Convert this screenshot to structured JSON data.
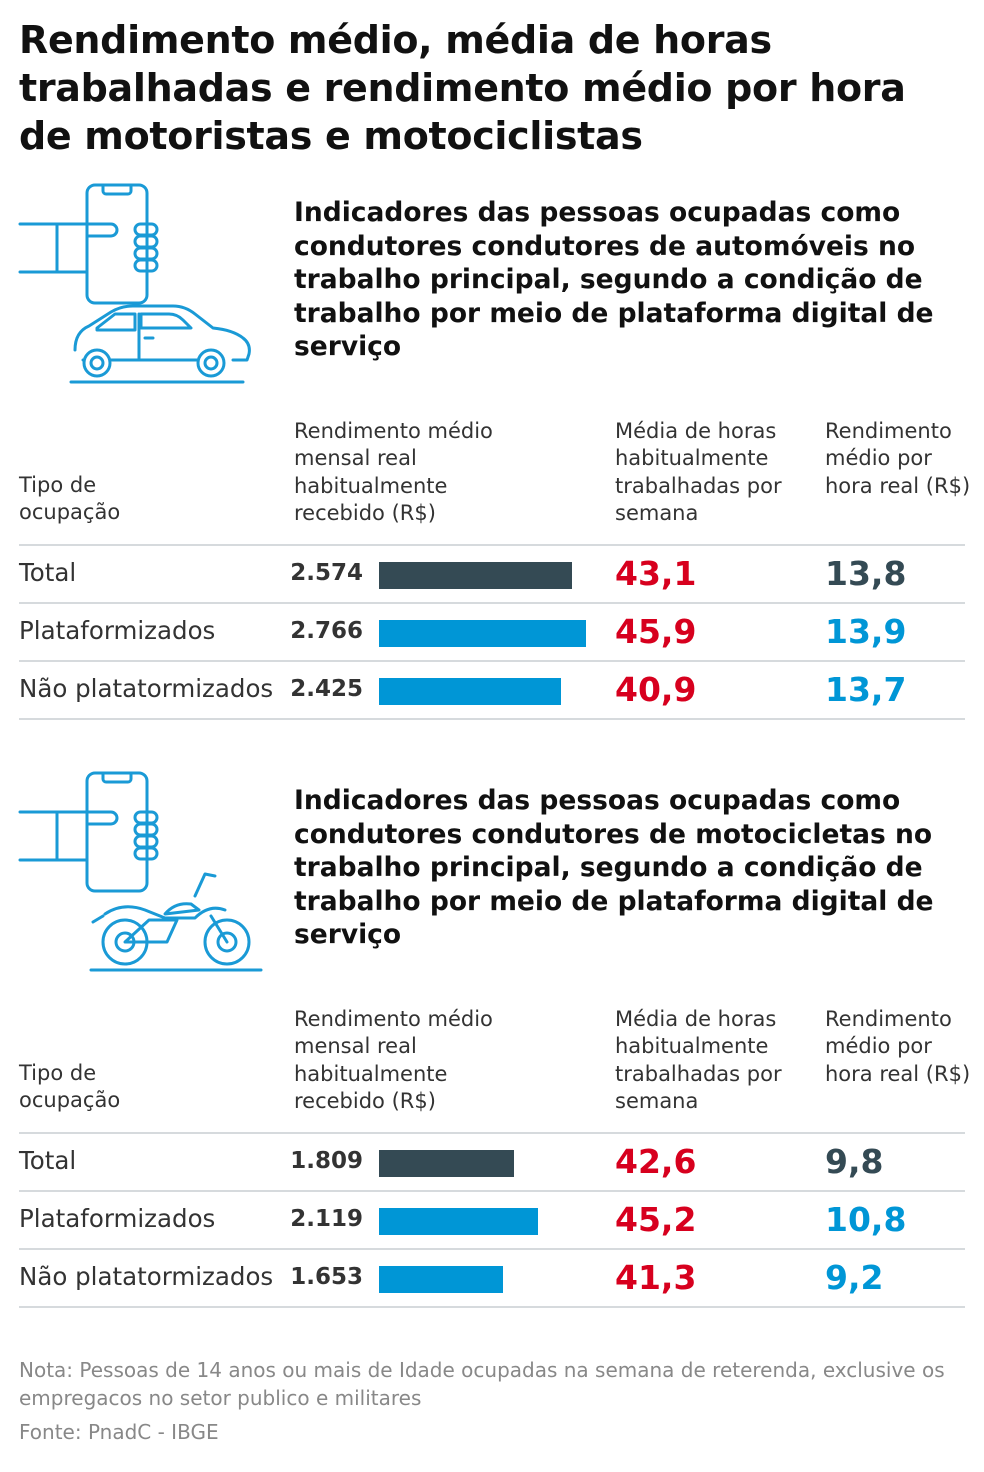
{
  "title": "Rendimento médio, média de horas trabalhadas e rendimento médio por hora de motoristas e motociclistas",
  "colors": {
    "total": "#344a54",
    "platform": "#0096d6",
    "hours": "#d7001e",
    "icon": "#1a9ad6"
  },
  "headers": {
    "type": "Tipo de ocupação",
    "income": "Rendimento médio mensal real habitualmente recebido (R$)",
    "hours": "Média de horas habitualmente trabalhadas por semana",
    "rate": "Rendimento médio por hora real (R$)"
  },
  "chart_data": [
    {
      "type": "table",
      "title": "Indicadores das pessoas ocupadas como condutores condutores de automóveis no trabalho principal, segundo a condição de trabalho por meio de plataforma digital de serviço",
      "icon": "hand-phone-car-icon",
      "categories": [
        "Total",
        "Plataformizados",
        "Não platatormizados"
      ],
      "income": [
        2574,
        2766,
        2425
      ],
      "income_labels": [
        "2.574",
        "2.766",
        "2.425"
      ],
      "hours": [
        "43,1",
        "45,9",
        "40,9"
      ],
      "rate": [
        "13,8",
        "13,9",
        "13,7"
      ]
    },
    {
      "type": "table",
      "title": "Indicadores das pessoas ocupadas como condutores condutores de motocicletas no trabalho principal, segundo a condição de trabalho por meio de plataforma digital de serviço",
      "icon": "hand-phone-motorcycle-icon",
      "categories": [
        "Total",
        "Plataformizados",
        "Não platatormizados"
      ],
      "income": [
        1809,
        2119,
        1653
      ],
      "income_labels": [
        "1.809",
        "2.119",
        "1.653"
      ],
      "hours": [
        "42,6",
        "45,2",
        "41,3"
      ],
      "rate": [
        "9,8",
        "10,8",
        "9,2"
      ]
    }
  ],
  "note": "Nota: Pessoas de 14 anos ou mais de Idade ocupadas na semana de reterenda, exclusive os empregacos no setor publico e militares",
  "source": "Fonte: PnadC - IBGE"
}
